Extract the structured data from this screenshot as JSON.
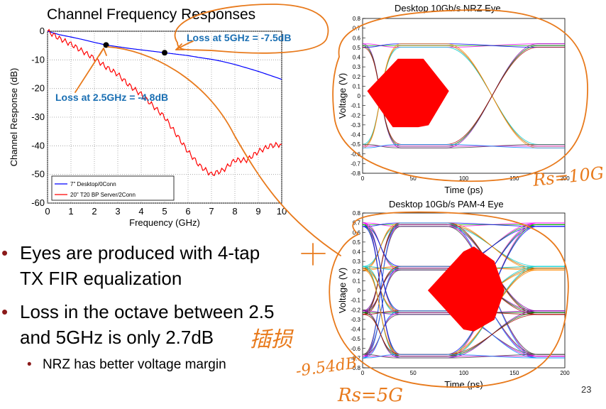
{
  "slide": {
    "title": "Channel Frequency Responses",
    "page_number": "23",
    "bullets": [
      {
        "text_line1": "Eyes are produced with 4-tap",
        "text_line2": "TX FIR equalization"
      },
      {
        "text_line1": "Loss in the octave between 2.5",
        "text_line2": "and 5GHz is only 2.7dB"
      }
    ],
    "sub_bullet": "NRZ has better voltage margin",
    "bullet_marker": "•",
    "annotations": {
      "loss_5ghz": "Loss at 5GHz = -7.5dB",
      "loss_25ghz": "Loss at 2.5GHz = -4.8dB"
    },
    "handwriting": {
      "rs10": "Rs=10G",
      "plus": "+",
      "chinese": "插损",
      "db_value": "-9.54dB",
      "rs5": "Rs=5G"
    }
  },
  "chart_data": [
    {
      "type": "line",
      "title": "Channel Frequency Responses",
      "xlabel": "Frequency (GHz)",
      "ylabel": "Channel Response (dB)",
      "xlim": [
        0,
        10
      ],
      "ylim": [
        -60,
        0
      ],
      "xticks": [
        "0",
        "1",
        "2",
        "3",
        "4",
        "5",
        "6",
        "7",
        "8",
        "9",
        "10"
      ],
      "yticks": [
        "0",
        "-10",
        "-20",
        "-30",
        "-40",
        "-50",
        "-60"
      ],
      "grid": true,
      "legend_position": "bottom-left",
      "series": [
        {
          "name": "7\" Desktop/0Conn",
          "color": "#0000ff",
          "x": [
            0,
            0.5,
            1,
            1.5,
            2,
            2.5,
            3,
            3.5,
            4,
            4.5,
            5,
            5.5,
            6,
            6.5,
            7,
            7.5,
            8,
            8.5,
            9,
            9.5,
            10
          ],
          "values": [
            0,
            -1.2,
            -2,
            -2.9,
            -3.9,
            -4.8,
            -5.4,
            -6,
            -6.5,
            -7,
            -7.5,
            -8,
            -8.5,
            -9.2,
            -9.8,
            -10.6,
            -11.6,
            -12.8,
            -14,
            -15.4,
            -16.8
          ]
        },
        {
          "name": "20\" T20 BP Server/2Conn",
          "color": "#ff0000",
          "x": [
            0,
            0.5,
            1,
            1.5,
            2,
            2.5,
            3,
            3.5,
            4,
            4.5,
            5,
            5.5,
            6,
            6.5,
            7,
            7.5,
            8,
            8.5,
            9,
            9.5,
            10
          ],
          "values": [
            0,
            -2.5,
            -4.5,
            -7,
            -9.5,
            -12.5,
            -15,
            -19,
            -22,
            -26,
            -30,
            -36,
            -42,
            -47,
            -50,
            -48.5,
            -45,
            -45,
            -42,
            -40,
            -39.5
          ]
        }
      ],
      "markers": [
        {
          "x": 2.5,
          "y": -4.8
        },
        {
          "x": 5,
          "y": -7.5
        }
      ]
    },
    {
      "type": "line",
      "title": "Desktop 10Gb/s NRZ Eye",
      "xlabel": "Time (ps)",
      "ylabel": "Voltage (V)",
      "xlim": [
        0,
        200
      ],
      "ylim": [
        -0.8,
        0.8
      ],
      "xticks": [
        "0",
        "50",
        "100",
        "150",
        "200"
      ],
      "yticks": [
        "0.8",
        "0.7",
        "0.6",
        "0.5",
        "0.4",
        "0.3",
        "0.2",
        "0.1",
        "0",
        "-0.1",
        "-0.2",
        "-0.3",
        "-0.4",
        "-0.5",
        "-0.6",
        "-0.7",
        "-0.8"
      ],
      "levels": [
        0.52,
        -0.52
      ],
      "mask_color": "#ff0000"
    },
    {
      "type": "line",
      "title": "Desktop 10Gb/s PAM-4 Eye",
      "xlabel": "Time (ps)",
      "ylabel": "Voltage (V)",
      "xlim": [
        0,
        200
      ],
      "ylim": [
        -0.8,
        0.8
      ],
      "xticks": [
        "0",
        "50",
        "100",
        "150",
        "200"
      ],
      "yticks": [
        "0.8",
        "0.7",
        "0.6",
        "0.5",
        "0.4",
        "0.3",
        "0.2",
        "0.1",
        "0",
        "-0.1",
        "-0.2",
        "-0.3",
        "-0.4",
        "-0.5",
        "-0.6",
        "-0.7",
        "-0.8"
      ],
      "levels": [
        0.68,
        0.23,
        -0.23,
        -0.68
      ],
      "mask_color": "#ff0000"
    }
  ],
  "colors": {
    "annotation": "#1a6fb3",
    "handwriting": "#e87a1c",
    "bullet_marker": "#8b1a1a"
  }
}
